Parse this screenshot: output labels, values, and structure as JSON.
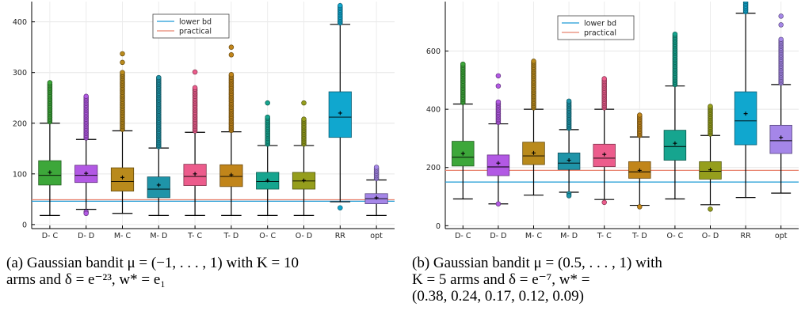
{
  "chart_data": [
    {
      "type": "box",
      "categories": [
        "D- C",
        "D- D",
        "M- C",
        "M- D",
        "T- C",
        "T- D",
        "O- C",
        "O- D",
        "RR",
        "opt"
      ],
      "colors": [
        "#3da73a",
        "#b259e4",
        "#b98a1c",
        "#1f94a8",
        "#ec5c8c",
        "#c1851a",
        "#16a58f",
        "#959e1c",
        "#10a7cf",
        "#a586e8"
      ],
      "boxes": [
        {
          "whisker_low": 18,
          "q1": 78,
          "median": 97,
          "q3": 126,
          "whisker_high": 200,
          "mean": 103,
          "outliers_from": 200,
          "outliers_to": 280
        },
        {
          "whisker_low": 30,
          "q1": 83,
          "median": 97,
          "q3": 117,
          "whisker_high": 168,
          "mean": 101,
          "outliers_from": 168,
          "outliers_to": 253,
          "low_outliers": [
            25,
            22
          ]
        },
        {
          "whisker_low": 22,
          "q1": 66,
          "median": 85,
          "q3": 112,
          "whisker_high": 185,
          "mean": 93,
          "outliers_from": 185,
          "outliers_to": 300,
          "top_outliers": [
            320,
            337
          ]
        },
        {
          "whisker_low": 18,
          "q1": 53,
          "median": 70,
          "q3": 94,
          "whisker_high": 151,
          "mean": 78,
          "outliers_from": 151,
          "outliers_to": 290
        },
        {
          "whisker_low": 18,
          "q1": 77,
          "median": 95,
          "q3": 119,
          "whisker_high": 182,
          "mean": 100,
          "outliers_from": 182,
          "outliers_to": 270,
          "top_outliers": [
            301
          ]
        },
        {
          "whisker_low": 18,
          "q1": 75,
          "median": 95,
          "q3": 118,
          "whisker_high": 183,
          "mean": 98,
          "outliers_from": 183,
          "outliers_to": 296,
          "top_outliers": [
            335,
            350
          ]
        },
        {
          "whisker_low": 18,
          "q1": 70,
          "median": 85,
          "q3": 103,
          "whisker_high": 156,
          "mean": 87,
          "outliers_from": 156,
          "outliers_to": 212,
          "top_outliers": [
            240
          ]
        },
        {
          "whisker_low": 18,
          "q1": 70,
          "median": 86,
          "q3": 103,
          "whisker_high": 156,
          "mean": 87,
          "outliers_from": 156,
          "outliers_to": 208,
          "top_outliers": [
            240
          ]
        },
        {
          "whisker_low": 45,
          "q1": 172,
          "median": 212,
          "q3": 262,
          "whisker_high": 395,
          "mean": 220,
          "outliers_from": 395,
          "outliers_to": 432,
          "low_outliers": [
            33
          ]
        },
        {
          "whisker_low": 18,
          "q1": 41,
          "median": 51,
          "q3": 61,
          "whisker_high": 88,
          "mean": 53,
          "outliers_from": 88,
          "outliers_to": 113
        }
      ],
      "hlines": [
        {
          "name": "lower bd",
          "value": 46,
          "color": "#1f9bd6"
        },
        {
          "name": "practical",
          "value": 49,
          "color": "#e8836f"
        }
      ],
      "legend_position": "top-right",
      "ylim": [
        -8,
        440
      ],
      "yticks": [
        0,
        100,
        200,
        300,
        400
      ],
      "grid": true
    },
    {
      "type": "box",
      "categories": [
        "D- C",
        "D- D",
        "M- C",
        "M- D",
        "T- C",
        "T- D",
        "O- C",
        "O- D",
        "RR",
        "opt"
      ],
      "colors": [
        "#3da73a",
        "#b259e4",
        "#b98a1c",
        "#1f94a8",
        "#ec5c8c",
        "#c1851a",
        "#16a58f",
        "#959e1c",
        "#10a7cf",
        "#a586e8"
      ],
      "boxes": [
        {
          "whisker_low": 92,
          "q1": 205,
          "median": 235,
          "q3": 290,
          "whisker_high": 418,
          "mean": 248,
          "outliers_from": 418,
          "outliers_to": 555
        },
        {
          "whisker_low": 75,
          "q1": 172,
          "median": 202,
          "q3": 243,
          "whisker_high": 350,
          "mean": 215,
          "outliers_from": 350,
          "outliers_to": 425,
          "top_outliers": [
            480,
            515
          ],
          "low_outliers": [
            75
          ]
        },
        {
          "whisker_low": 105,
          "q1": 210,
          "median": 240,
          "q3": 287,
          "whisker_high": 400,
          "mean": 250,
          "outliers_from": 400,
          "outliers_to": 565
        },
        {
          "whisker_low": 115,
          "q1": 193,
          "median": 215,
          "q3": 250,
          "whisker_high": 330,
          "mean": 225,
          "outliers_from": 330,
          "outliers_to": 428,
          "low_outliers": [
            110,
            103
          ]
        },
        {
          "whisker_low": 90,
          "q1": 203,
          "median": 232,
          "q3": 280,
          "whisker_high": 400,
          "mean": 245,
          "outliers_from": 400,
          "outliers_to": 505,
          "low_outliers": [
            80
          ]
        },
        {
          "whisker_low": 70,
          "q1": 163,
          "median": 185,
          "q3": 220,
          "whisker_high": 305,
          "mean": 190,
          "outliers_from": 305,
          "outliers_to": 380,
          "low_outliers": [
            65
          ]
        },
        {
          "whisker_low": 92,
          "q1": 225,
          "median": 272,
          "q3": 328,
          "whisker_high": 480,
          "mean": 283,
          "outliers_from": 480,
          "outliers_to": 658
        },
        {
          "whisker_low": 72,
          "q1": 160,
          "median": 187,
          "q3": 220,
          "whisker_high": 310,
          "mean": 192,
          "outliers_from": 310,
          "outliers_to": 410,
          "low_outliers": [
            57
          ]
        },
        {
          "whisker_low": 97,
          "q1": 278,
          "median": 360,
          "q3": 460,
          "whisker_high": 730,
          "mean": 385,
          "outliers_from": 730,
          "outliers_to": 775
        },
        {
          "whisker_low": 112,
          "q1": 248,
          "median": 292,
          "q3": 345,
          "whisker_high": 485,
          "mean": 303,
          "outliers_from": 485,
          "outliers_to": 640,
          "top_outliers": [
            690,
            720
          ]
        }
      ],
      "hlines": [
        {
          "name": "lower bd",
          "value": 150,
          "color": "#1f9bd6"
        },
        {
          "name": "practical",
          "value": 190,
          "color": "#e8836f"
        }
      ],
      "legend_position": "top-right",
      "ylim": [
        -10,
        770
      ],
      "yticks": [
        0,
        200,
        400,
        600
      ],
      "grid": true
    }
  ],
  "captions": {
    "a": {
      "label": "(a)",
      "line1": "Gaussian bandit μ = (−1, . . . , 1) with K = 10",
      "line2": "arms and δ = e⁻²³, w* = e₁"
    },
    "b": {
      "label": "(b)",
      "line1": "Gaussian bandit μ = (0.5, . . . , 1) with",
      "line2": "K = 5 arms and δ = e⁻⁷, w* =",
      "line3": "(0.38, 0.24, 0.17, 0.12, 0.09)"
    }
  }
}
